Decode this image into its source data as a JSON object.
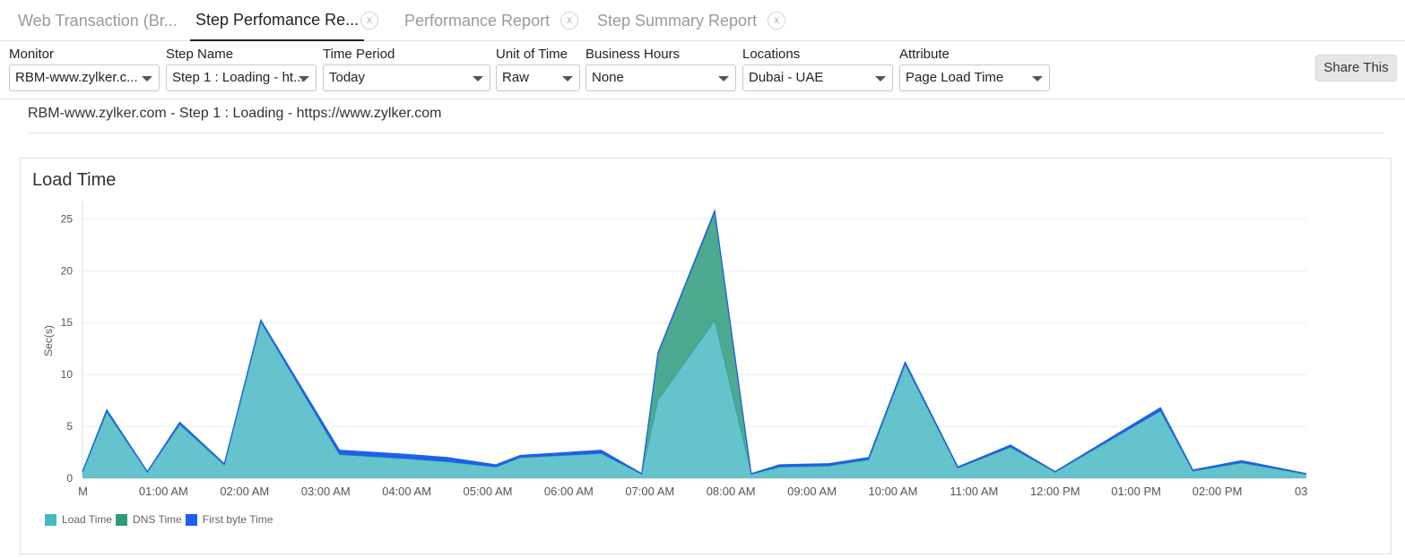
{
  "tabs": [
    {
      "label": "Web Transaction (Br...",
      "closable": false,
      "active": false
    },
    {
      "label": "Step Perfomance Re...",
      "closable": true,
      "active": true
    },
    {
      "label": "Performance Report",
      "closable": true,
      "active": false
    },
    {
      "label": "Step Summary Report",
      "closable": true,
      "active": false
    }
  ],
  "tab_close_glyph": "x",
  "filters": {
    "monitor": {
      "label": "Monitor",
      "value": "RBM-www.zylker.c..."
    },
    "step_name": {
      "label": "Step Name",
      "value": "Step 1 : Loading - ht..."
    },
    "time_period": {
      "label": "Time Period",
      "value": "Today"
    },
    "unit_of_time": {
      "label": "Unit of Time",
      "value": "Raw"
    },
    "business_hours": {
      "label": "Business Hours",
      "value": "None"
    },
    "locations": {
      "label": "Locations",
      "value": "Dubai - UAE"
    },
    "attribute": {
      "label": "Attribute",
      "value": "Page Load Time"
    }
  },
  "share_label": "Share This",
  "subtitle": "RBM-www.zylker.com - Step 1 : Loading - https://www.zylker.com",
  "chart_data": {
    "type": "area",
    "title": "Load Time",
    "ylabel": "Sec(s)",
    "xlabel": "",
    "ylim": [
      0,
      26.5
    ],
    "yticks": [
      0,
      5,
      10,
      15,
      20,
      25
    ],
    "x_hours_range": [
      0,
      15.1
    ],
    "xtick_labels": [
      {
        "h": 0,
        "label": "M"
      },
      {
        "h": 1,
        "label": "01:00 AM"
      },
      {
        "h": 2,
        "label": "02:00 AM"
      },
      {
        "h": 3,
        "label": "03:00 AM"
      },
      {
        "h": 4,
        "label": "04:00 AM"
      },
      {
        "h": 5,
        "label": "05:00 AM"
      },
      {
        "h": 6,
        "label": "06:00 AM"
      },
      {
        "h": 7,
        "label": "07:00 AM"
      },
      {
        "h": 8,
        "label": "08:00 AM"
      },
      {
        "h": 9,
        "label": "09:00 AM"
      },
      {
        "h": 10,
        "label": "10:00 AM"
      },
      {
        "h": 11,
        "label": "11:00 AM"
      },
      {
        "h": 12,
        "label": "12:00 PM"
      },
      {
        "h": 13,
        "label": "01:00 PM"
      },
      {
        "h": 14,
        "label": "02:00 PM"
      },
      {
        "h": 15,
        "label": "03"
      }
    ],
    "x_hours": [
      0,
      0.3,
      0.8,
      1.2,
      1.75,
      2.2,
      3.17,
      4.0,
      4.5,
      5.1,
      5.4,
      6.4,
      6.9,
      7.1,
      7.8,
      8.25,
      8.6,
      9.2,
      9.7,
      10.15,
      10.8,
      11.45,
      12.0,
      13.3,
      13.7,
      14.3,
      15.1
    ],
    "series": [
      {
        "name": "Load Time",
        "color": "#4ab8c4",
        "values": [
          0.6,
          6.4,
          0.6,
          5.2,
          1.3,
          15.1,
          2.3,
          1.9,
          1.6,
          1.1,
          2.0,
          2.4,
          0.4,
          7.5,
          15.2,
          0.4,
          1.1,
          1.2,
          1.8,
          11.0,
          1.0,
          3.0,
          0.6,
          6.5,
          0.7,
          1.5,
          0.4
        ]
      },
      {
        "name": "DNS Time",
        "color": "#2e9a7b",
        "values": [
          0.0,
          0.0,
          0.0,
          0.0,
          0.0,
          0.0,
          0.0,
          0.0,
          0.0,
          0.0,
          0.0,
          0.0,
          0.0,
          4.5,
          10.4,
          0.0,
          0.0,
          0.0,
          0.0,
          0.0,
          0.0,
          0.0,
          0.0,
          0.0,
          0.0,
          0.0,
          0.0
        ]
      },
      {
        "name": "First byte Time",
        "color": "#1e5ef0",
        "values": [
          0.05,
          0.2,
          0.05,
          0.2,
          0.1,
          0.15,
          0.4,
          0.4,
          0.4,
          0.2,
          0.2,
          0.3,
          0.05,
          0.1,
          0.2,
          0.05,
          0.2,
          0.2,
          0.2,
          0.2,
          0.1,
          0.2,
          0.05,
          0.3,
          0.1,
          0.2,
          0.05
        ]
      }
    ],
    "grid": true,
    "legend_position": "bottom-left"
  }
}
